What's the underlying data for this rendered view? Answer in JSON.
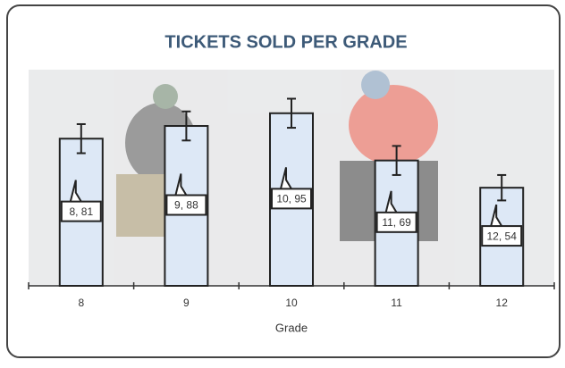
{
  "chart_data": {
    "type": "bar",
    "title": "TICKETS SOLD PER GRADE",
    "x_label": "Grade",
    "categories": [
      "8",
      "9",
      "10",
      "11",
      "12"
    ],
    "values": [
      81,
      88,
      95,
      69,
      54
    ],
    "value_labels": [
      "8, 81",
      "9, 88",
      "10, 95",
      "11, 69",
      "12, 54"
    ],
    "errors": [
      8,
      8,
      8,
      8,
      7
    ],
    "color": "#dde8f6",
    "ylim": [
      0,
      118
    ]
  }
}
